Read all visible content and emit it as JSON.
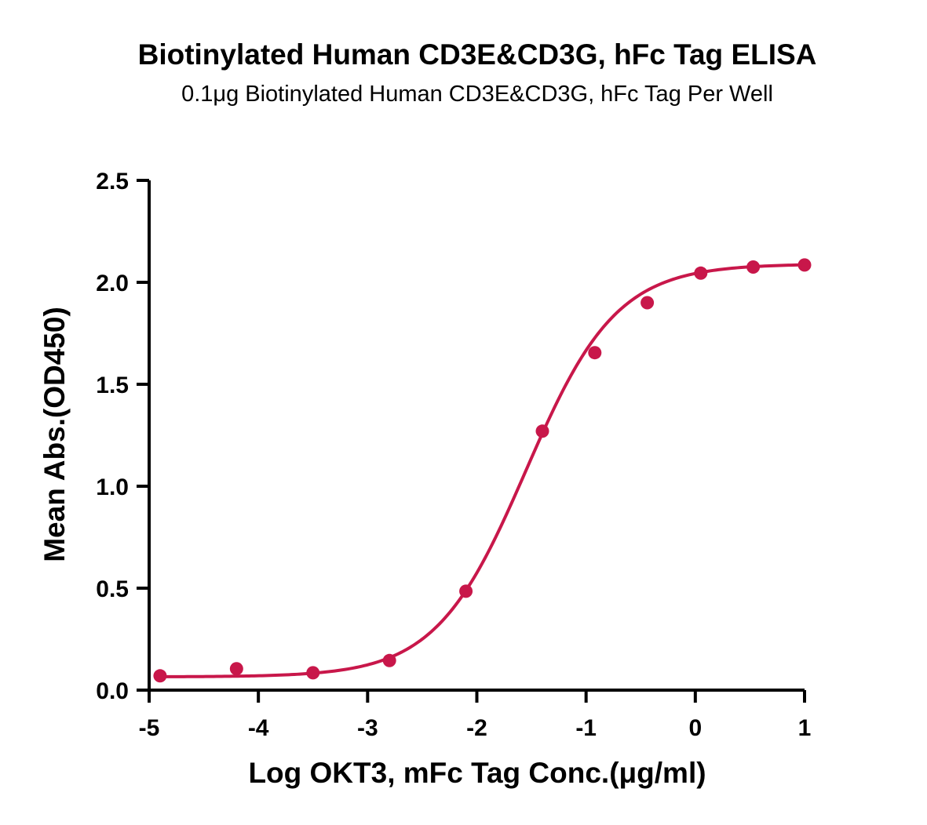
{
  "chart_data": {
    "type": "scatter",
    "title": "Biotinylated Human CD3E&CD3G, hFc Tag ELISA",
    "subtitle": "0.1μg Biotinylated Human CD3E&CD3G, hFc Tag Per Well",
    "xlabel": "Log OKT3, mFc Tag Conc.(μg/ml)",
    "ylabel": "Mean Abs.(OD450)",
    "xlim": [
      -5,
      1
    ],
    "ylim": [
      0,
      2.5
    ],
    "x_ticks": [
      -5,
      -4,
      -3,
      -2,
      -1,
      0,
      1
    ],
    "x_tick_labels": [
      "-5",
      "-4",
      "-3",
      "-2",
      "-1",
      "0",
      "1"
    ],
    "y_ticks": [
      0,
      0.5,
      1.0,
      1.5,
      2.0,
      2.5
    ],
    "y_tick_labels": [
      "0.0",
      "0.5",
      "1.0",
      "1.5",
      "2.0",
      "2.5"
    ],
    "series": [
      {
        "color": "#c8174a",
        "x": [
          -4.9,
          -4.2,
          -3.5,
          -2.8,
          -2.1,
          -1.4,
          -0.92,
          -0.44,
          0.05,
          0.53,
          1.0
        ],
        "y": [
          0.07,
          0.105,
          0.085,
          0.145,
          0.485,
          1.27,
          1.655,
          1.9,
          2.045,
          2.075,
          2.085
        ],
        "fit": {
          "model": "four-parameter logistic",
          "bottom": 0.065,
          "top": 2.09,
          "log_ec50": -1.55,
          "hill_slope": 1.05
        }
      }
    ],
    "grid": false,
    "legend": "none"
  }
}
